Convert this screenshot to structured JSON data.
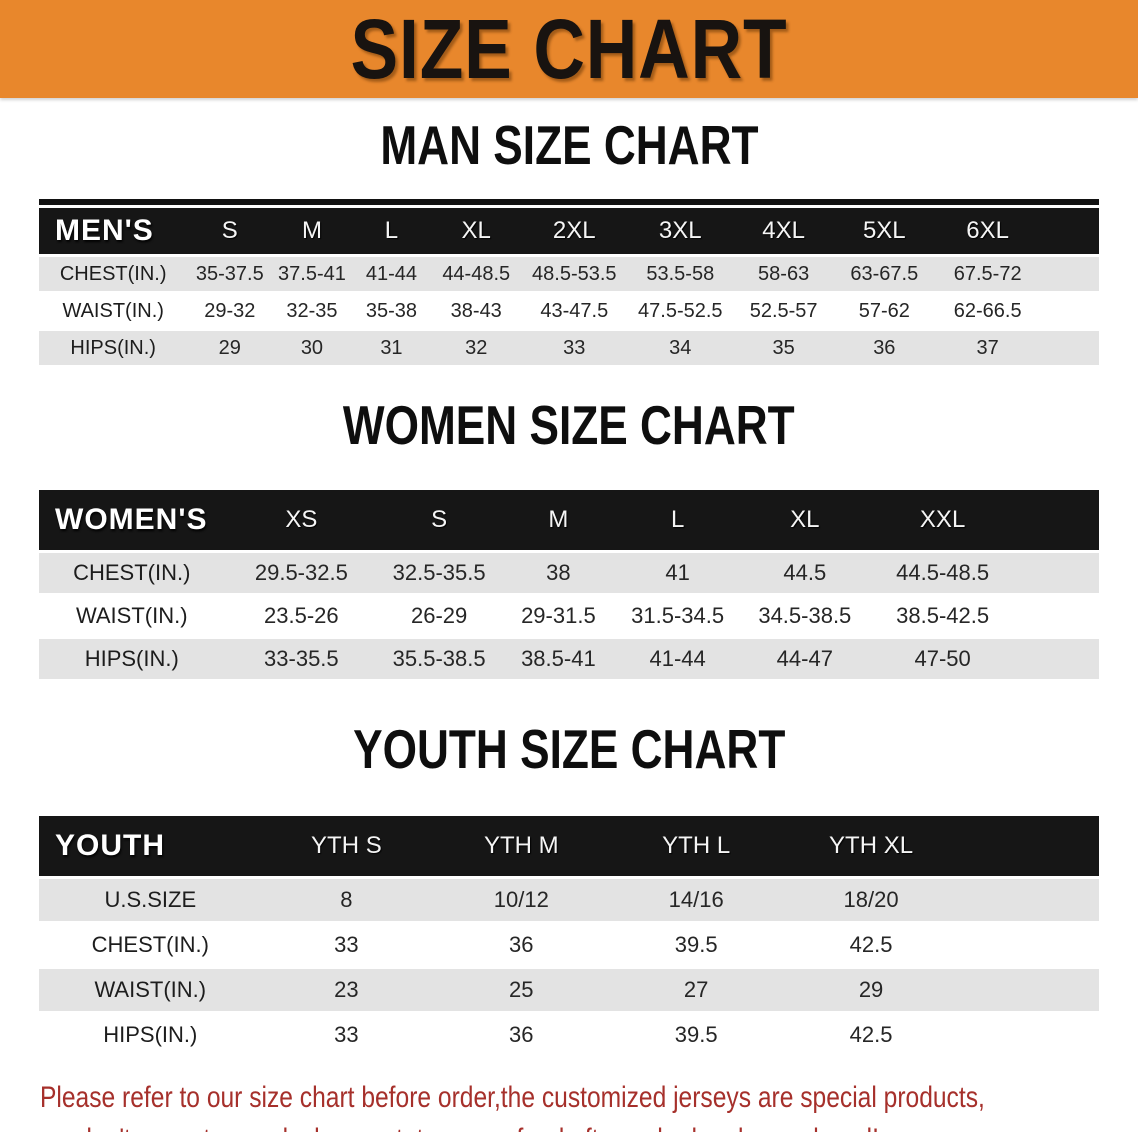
{
  "banner": {
    "title": "SIZE CHART"
  },
  "colors": {
    "banner_bg": "#E8872C",
    "header_bg": "#161616",
    "header_text": "#F5F5F5",
    "row_gray": "#E3E3E3",
    "disclaimer_red": "#A6302B"
  },
  "sections": [
    {
      "id": "men",
      "title": "MAN SIZE CHART",
      "header_label": "MEN'S",
      "columns": [
        "S",
        "M",
        "L",
        "XL",
        "2XL",
        "3XL",
        "4XL",
        "5XL",
        "6XL",
        ""
      ],
      "rows": [
        {
          "label": "CHEST(IN.)",
          "values": [
            "35-37.5",
            "37.5-41",
            "41-44",
            "44-48.5",
            "48.5-53.5",
            "53.5-58",
            "58-63",
            "63-67.5",
            "67.5-72",
            ""
          ]
        },
        {
          "label": "WAIST(IN.)",
          "values": [
            "29-32",
            "32-35",
            "35-38",
            "38-43",
            "43-47.5",
            "47.5-52.5",
            "52.5-57",
            "57-62",
            "62-66.5",
            ""
          ]
        },
        {
          "label": "HIPS(IN.)",
          "values": [
            "29",
            "30",
            "31",
            "32",
            "33",
            "34",
            "35",
            "36",
            "37",
            ""
          ]
        }
      ]
    },
    {
      "id": "women",
      "title": "WOMEN SIZE CHART",
      "header_label": "WOMEN'S",
      "columns": [
        "XS",
        "S",
        "M",
        "L",
        "XL",
        "XXL",
        ""
      ],
      "rows": [
        {
          "label": "CHEST(IN.)",
          "values": [
            "29.5-32.5",
            "32.5-35.5",
            "38",
            "41",
            "44.5",
            "44.5-48.5",
            ""
          ]
        },
        {
          "label": "WAIST(IN.)",
          "values": [
            "23.5-26",
            "26-29",
            "29-31.5",
            "31.5-34.5",
            "34.5-38.5",
            "38.5-42.5",
            ""
          ]
        },
        {
          "label": "HIPS(IN.)",
          "values": [
            "33-35.5",
            "35.5-38.5",
            "38.5-41",
            "41-44",
            "44-47",
            "47-50",
            ""
          ]
        }
      ]
    },
    {
      "id": "youth",
      "title": "YOUTH SIZE CHART",
      "header_label": "YOUTH",
      "columns": [
        "YTH S",
        "YTH M",
        "YTH L",
        "YTH XL",
        ""
      ],
      "rows": [
        {
          "label": "U.S.SIZE",
          "values": [
            "8",
            "10/12",
            "14/16",
            "18/20",
            ""
          ]
        },
        {
          "label": "CHEST(IN.)",
          "values": [
            "33",
            "36",
            "39.5",
            "42.5",
            ""
          ]
        },
        {
          "label": "WAIST(IN.)",
          "values": [
            "23",
            "25",
            "27",
            "29",
            ""
          ]
        },
        {
          "label": "HIPS(IN.)",
          "values": [
            "33",
            "36",
            "39.5",
            "42.5",
            ""
          ]
        }
      ]
    }
  ],
  "disclaimer": {
    "line1": "Please refer to our size chart before order,the customized jerseys are special products,",
    "line2": "we don't accept cancel, change, teturn or refund after order has been placed!"
  }
}
